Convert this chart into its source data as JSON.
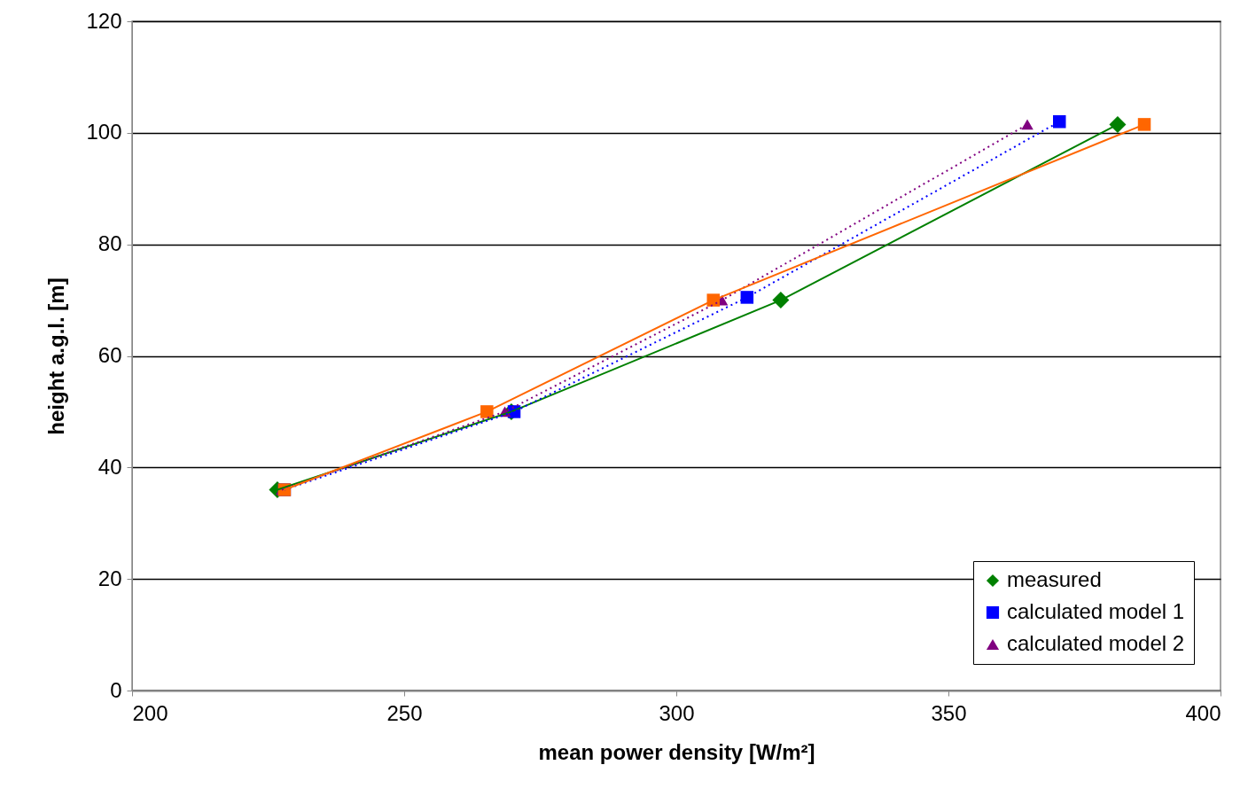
{
  "chart_data": {
    "type": "line",
    "xlabel": "mean power density [W/m²]",
    "ylabel": "height a.g.l. [m]",
    "xlim": [
      200,
      400
    ],
    "xticks": [
      200,
      250,
      300,
      350,
      400
    ],
    "ylim": [
      0,
      120
    ],
    "yticks": [
      0,
      20,
      40,
      60,
      80,
      100,
      120
    ],
    "grid": "y",
    "legend": "bottom right",
    "series": [
      {
        "name": "measured",
        "color": "#008000",
        "marker": "diamond",
        "line_style": "solid",
        "x": [
          226.7,
          269.7,
          319.2,
          381.1
        ],
        "values": [
          36,
          50,
          70,
          101.5
        ]
      },
      {
        "name": "calculated model 1",
        "color": "#0000ff",
        "marker": "square",
        "line_style": "dotted",
        "x": [
          228,
          270.2,
          313,
          370.4
        ],
        "values": [
          36,
          50,
          70.5,
          102
        ]
      },
      {
        "name": "calculated model 2",
        "color": "#800080",
        "marker": "triangle",
        "line_style": "dotted",
        "x": [
          227.5,
          268.5,
          308.4,
          364.5
        ],
        "values": [
          36,
          50,
          70,
          101.5
        ]
      },
      {
        "color": "#ff6600",
        "marker": "square",
        "line_style": "solid",
        "x": [
          228,
          265.2,
          306.8,
          386
        ],
        "values": [
          36,
          50,
          70,
          101.5
        ]
      }
    ]
  }
}
